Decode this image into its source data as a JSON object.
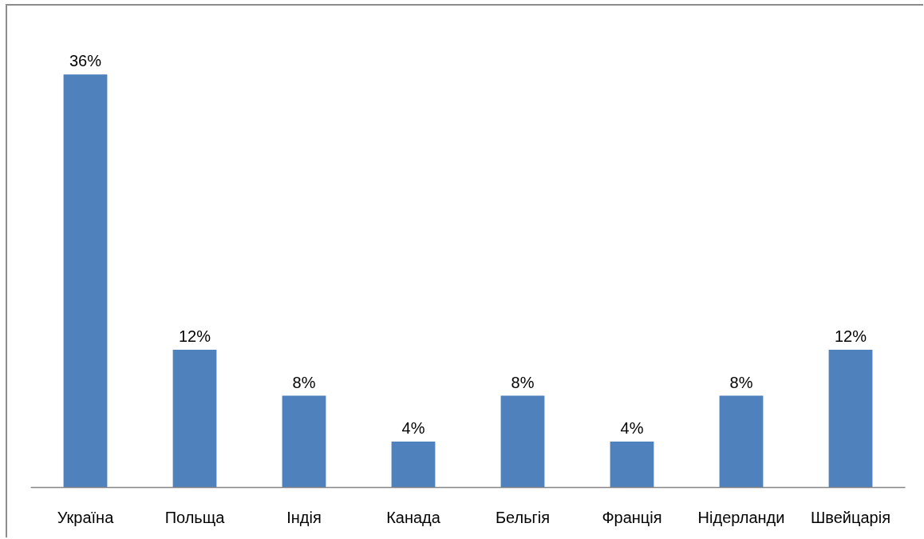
{
  "chart_data": {
    "type": "bar",
    "categories": [
      "Україна",
      "Польща",
      "Індія",
      "Канада",
      "Бельгія",
      "Франція",
      "Нідерланди",
      "Швейцарія"
    ],
    "values": [
      36,
      12,
      8,
      4,
      8,
      4,
      8,
      12
    ],
    "value_labels": [
      "36%",
      "12%",
      "8%",
      "4%",
      "8%",
      "4%",
      "8%",
      "12%"
    ],
    "color": "#4f81bd"
  }
}
